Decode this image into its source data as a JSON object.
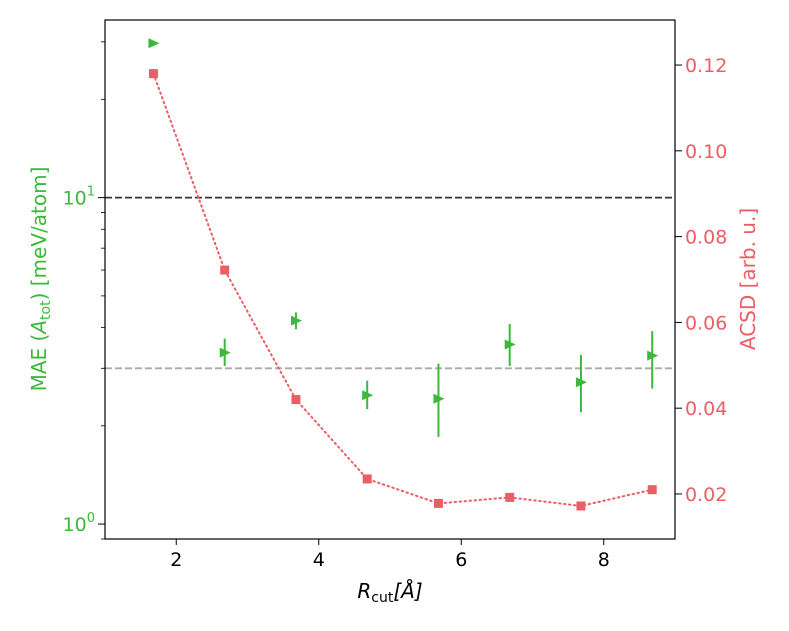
{
  "chart_data": {
    "type": "scatter",
    "x_axis": {
      "label_main": "R",
      "label_sub": "cut",
      "label_unit": "[Å]",
      "lim": [
        1.0,
        9.0
      ],
      "ticks": [
        2,
        4,
        6,
        8
      ],
      "tick_labels": [
        "2",
        "4",
        "6",
        "8"
      ]
    },
    "y_left": {
      "label_prefix": "MAE (",
      "label_main": "A",
      "label_sub": "tot",
      "label_suffix": ") [meV/atom]",
      "scale": "log",
      "lim": [
        0.9,
        35
      ],
      "ticks": [
        1,
        10
      ],
      "tick_labels": [
        {
          "base": "10",
          "exp": "0"
        },
        {
          "base": "10",
          "exp": "1"
        }
      ],
      "color": "#3cb93c"
    },
    "y_right": {
      "label": "ACSD [arb. u.]",
      "lim": [
        0.0095,
        0.1305
      ],
      "ticks": [
        0.02,
        0.04,
        0.06,
        0.08,
        0.1,
        0.12
      ],
      "tick_labels": [
        "0.02",
        "0.04",
        "0.06",
        "0.08",
        "0.10",
        "0.12"
      ],
      "color": "#ec5e66"
    },
    "mae_series": {
      "marker": "right-triangle",
      "color": "#3cb93c",
      "points": [
        {
          "x": 1.68,
          "y": 29.7,
          "err_low": 29.7,
          "err_high": 29.7
        },
        {
          "x": 2.68,
          "y": 3.35,
          "err_low": 3.05,
          "err_high": 3.7
        },
        {
          "x": 3.68,
          "y": 4.2,
          "err_low": 3.95,
          "err_high": 4.45
        },
        {
          "x": 4.68,
          "y": 2.48,
          "err_low": 2.25,
          "err_high": 2.75
        },
        {
          "x": 5.68,
          "y": 2.42,
          "err_low": 1.85,
          "err_high": 3.1
        },
        {
          "x": 6.68,
          "y": 3.55,
          "err_low": 3.05,
          "err_high": 4.1
        },
        {
          "x": 7.68,
          "y": 2.72,
          "err_low": 2.2,
          "err_high": 3.3
        },
        {
          "x": 8.68,
          "y": 3.28,
          "err_low": 2.6,
          "err_high": 3.9
        }
      ]
    },
    "acsd_series": {
      "marker": "square",
      "color": "#ec5e66",
      "linestyle": "dotted",
      "points": [
        {
          "x": 1.68,
          "y": 0.118
        },
        {
          "x": 2.68,
          "y": 0.0722
        },
        {
          "x": 3.68,
          "y": 0.042
        },
        {
          "x": 4.68,
          "y": 0.0235
        },
        {
          "x": 5.68,
          "y": 0.0178
        },
        {
          "x": 6.68,
          "y": 0.0192
        },
        {
          "x": 7.68,
          "y": 0.0172
        },
        {
          "x": 8.68,
          "y": 0.021
        }
      ]
    },
    "reference_lines": [
      {
        "axis": "left",
        "value": 10,
        "color": "#333333",
        "style": "dashed"
      },
      {
        "axis": "left",
        "value": 3,
        "color": "#aaaaaa",
        "style": "dashed"
      }
    ],
    "grid": false,
    "legend": "none"
  }
}
